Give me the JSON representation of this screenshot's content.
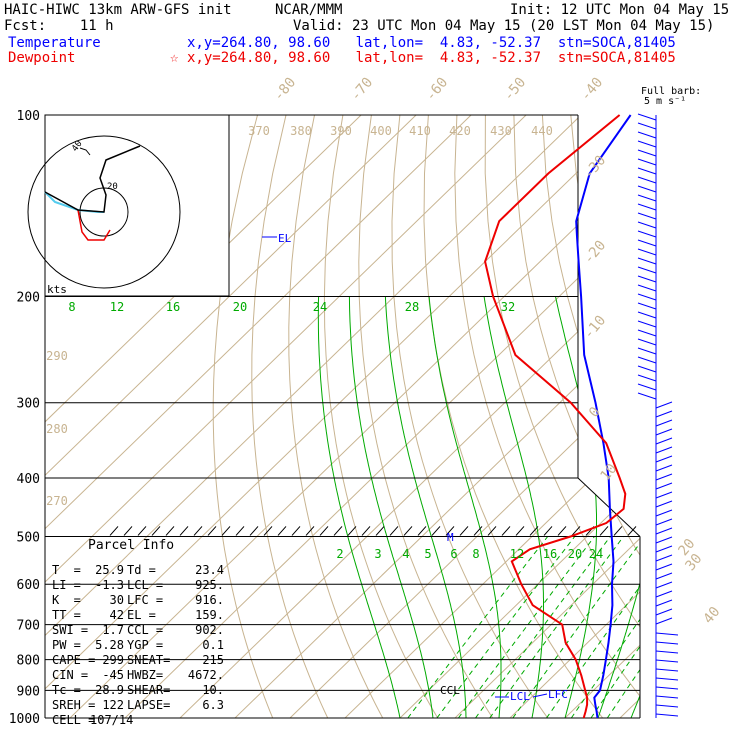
{
  "header": {
    "model": "HAIC-HIWC 13km ARW-GFS init",
    "org": "NCAR/MMM",
    "init": "Init: 12 UTC Mon 04 May 15",
    "fcst": "Fcst:    11 h",
    "valid": "Valid: 23 UTC Mon 04 May 15 (20 LST Mon 04 May 15)",
    "temp_label": "Temperature",
    "temp_info": "x,y=264.80, 98.60   lat,lon=  4.83, -52.37  stn=SOCA,81405",
    "dew_label": "Dewpoint",
    "dew_star": "☆",
    "dew_info": "x,y=264.80, 98.60   lat,lon=  4.83, -52.37  stn=SOCA,81405"
  },
  "barb_legend": {
    "line1": "Full barb:",
    "line2": "5 m s⁻¹"
  },
  "hodograph": {
    "label": "kts",
    "rings": [
      "20",
      "40"
    ]
  },
  "parcel_info": {
    "title": "Parcel Info",
    "rows": [
      [
        "T  =",
        "25.9",
        "Td =",
        "23.4"
      ],
      [
        "LI =",
        "-1.3",
        "LCL =",
        "925."
      ],
      [
        "K  =",
        "30",
        "LFC =",
        "916."
      ],
      [
        "TT =",
        "42",
        "EL =",
        "159."
      ],
      [
        "SWI =",
        "1.7",
        "CCL =",
        "902."
      ],
      [
        "PW =",
        "5.28",
        "YGP =",
        "0.1"
      ],
      [
        "CAPE =",
        "299",
        "SNEAT=",
        "215"
      ],
      [
        "CIN =",
        "-45",
        "HWBZ=",
        "4672."
      ],
      [
        "Tc =",
        "28.9",
        "SHEAR=",
        "10."
      ],
      [
        "SREH =",
        "122",
        "LAPSE=",
        "6.3"
      ],
      [
        "CELL =",
        "107/14",
        "",
        ""
      ]
    ]
  },
  "colors": {
    "temperature": "#0000ff",
    "dewpoint": "#ee0000",
    "isotherm": "#c8b491",
    "dry_adiabat": "#c8b491",
    "moist_adiabat": "#00aa00",
    "mixing_ratio": "#00aa00",
    "isobar": "#000000"
  },
  "chart_data": {
    "type": "line",
    "title": "",
    "pressure_levels": [
      "100",
      "200",
      "300",
      "400",
      "500",
      "600",
      "700",
      "800",
      "900",
      "1000"
    ],
    "isotherm_labels": [
      "-80",
      "-70",
      "-60",
      "-50",
      "-40",
      "-30",
      "-20",
      "-10",
      "0",
      "10",
      "20",
      "30",
      "40"
    ],
    "theta_labels": [
      "370",
      "380",
      "390",
      "400",
      "410",
      "420",
      "430",
      "440",
      "290",
      "280",
      "270"
    ],
    "mixing_ratio_labels": [
      "8",
      "12",
      "16",
      "20",
      "24",
      "28",
      "32"
    ],
    "moist_labels": [
      "2",
      "3",
      "4",
      "5",
      "6",
      "8",
      "12",
      "16",
      "20",
      "24"
    ],
    "level_markers": [
      "EL",
      "M",
      "CCL",
      "LCL",
      "LFC"
    ],
    "series": [
      {
        "name": "Temperature",
        "pressure_hPa": [
          1000,
          975,
          950,
          925,
          900,
          850,
          800,
          750,
          700,
          650,
          600,
          550,
          500,
          450,
          400,
          350,
          300,
          250,
          200,
          175,
          159,
          150,
          125,
          100
        ],
        "temperature_C": [
          25.9,
          24.5,
          23.0,
          21.5,
          21.2,
          19.0,
          16.5,
          13.8,
          10.8,
          7.5,
          3.5,
          -0.5,
          -5.5,
          -11.0,
          -17.0,
          -24.5,
          -33.5,
          -44.5,
          -56.0,
          -63.0,
          -68.0,
          -71.0,
          -77.5,
          -81.0
        ]
      },
      {
        "name": "Dewpoint",
        "pressure_hPa": [
          1000,
          975,
          950,
          925,
          900,
          850,
          800,
          750,
          700,
          650,
          600,
          550,
          525,
          500,
          475,
          450,
          425,
          400,
          350,
          300,
          250,
          200,
          175,
          150,
          125,
          100
        ],
        "dewpoint_C": [
          23.4,
          22.5,
          21.5,
          20.2,
          18.5,
          15.0,
          11.0,
          6.0,
          2.0,
          -7.0,
          -13.0,
          -19.0,
          -18.0,
          -13.0,
          -9.0,
          -8.5,
          -11.0,
          -15.0,
          -24.0,
          -38.0,
          -57.0,
          -72.0,
          -80.0,
          -85.0,
          -85.0,
          -83.0
        ]
      }
    ],
    "wind_barbs_note": "",
    "x_range_C": [
      -40,
      40
    ],
    "y_range_hPa": [
      1000,
      100
    ],
    "y_scale": "log"
  }
}
